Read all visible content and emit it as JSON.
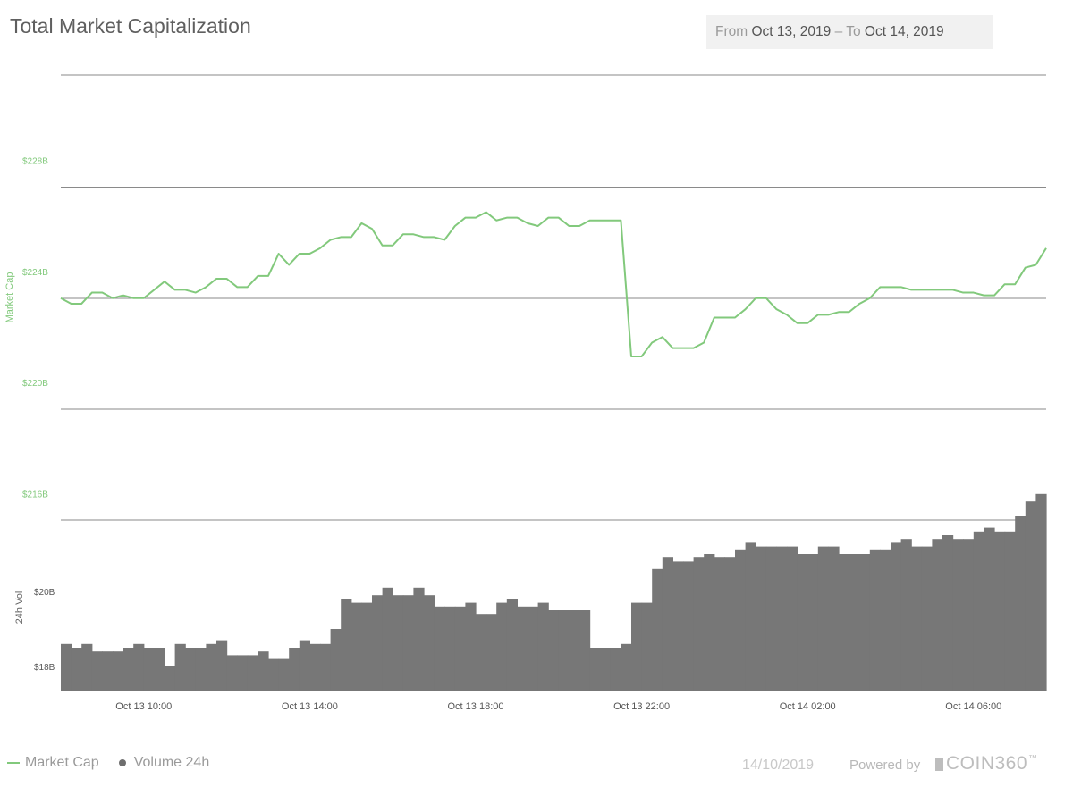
{
  "header": {
    "title": "Total Market Capitalization",
    "from_label": "From",
    "from_date": "Oct 13, 2019",
    "separator": "–",
    "to_label": "To",
    "to_date": "Oct 14, 2019"
  },
  "legend": {
    "market_cap": "Market Cap",
    "volume": "Volume 24h"
  },
  "footer": {
    "date": "14/10/2019",
    "powered_by": "Powered by",
    "brand": "COIN360",
    "trademark": "™"
  },
  "colors": {
    "market_cap_line": "#82c97c",
    "volume_bars": "#777777",
    "axis_label_green": "#82c97c",
    "gridline": "#8a8a8a"
  },
  "chart_data": [
    {
      "type": "line",
      "name": "Market Cap",
      "ylabel": "Market Cap",
      "yticks": [
        "$228B",
        "$224B",
        "$220B",
        "$216B"
      ],
      "ytick_values": [
        228,
        224,
        220,
        216
      ],
      "ylim": [
        212,
        232
      ],
      "unit": "$B",
      "x_start": "Oct 13 08:00",
      "x_end": "Oct 14 08:00",
      "x_step_minutes": 15,
      "values": [
        224.0,
        223.8,
        223.8,
        224.2,
        224.2,
        224.0,
        224.1,
        224.0,
        224.0,
        224.3,
        224.6,
        224.3,
        224.3,
        224.2,
        224.4,
        224.7,
        224.7,
        224.4,
        224.4,
        224.8,
        224.8,
        225.6,
        225.2,
        225.6,
        225.6,
        225.8,
        226.1,
        226.2,
        226.2,
        226.7,
        226.5,
        225.9,
        225.9,
        226.3,
        226.3,
        226.2,
        226.2,
        226.1,
        226.6,
        226.9,
        226.9,
        227.1,
        226.8,
        226.9,
        226.9,
        226.7,
        226.6,
        226.9,
        226.9,
        226.6,
        226.6,
        226.8,
        226.8,
        226.8,
        226.8,
        221.9,
        221.9,
        222.4,
        222.6,
        222.2,
        222.2,
        222.2,
        222.4,
        223.3,
        223.3,
        223.3,
        223.6,
        224.0,
        224.0,
        223.6,
        223.4,
        223.1,
        223.1,
        223.4,
        223.4,
        223.5,
        223.5,
        223.8,
        224.0,
        224.4,
        224.4,
        224.4,
        224.3,
        224.3,
        224.3,
        224.3,
        224.3,
        224.2,
        224.2,
        224.1,
        224.1,
        224.5,
        224.5,
        225.1,
        225.2,
        225.8
      ]
    },
    {
      "type": "bar",
      "name": "Volume 24h",
      "ylabel": "24h Vol",
      "yticks": [
        "$20B",
        "$18B"
      ],
      "ytick_values": [
        20,
        18
      ],
      "unit": "$B",
      "values": [
        18.6,
        18.5,
        18.6,
        18.4,
        18.4,
        18.4,
        18.5,
        18.6,
        18.5,
        18.5,
        18.0,
        18.6,
        18.5,
        18.5,
        18.6,
        18.7,
        18.3,
        18.3,
        18.3,
        18.4,
        18.2,
        18.2,
        18.5,
        18.7,
        18.6,
        18.6,
        19.0,
        19.8,
        19.7,
        19.7,
        19.9,
        20.1,
        19.9,
        19.9,
        20.1,
        19.9,
        19.6,
        19.6,
        19.6,
        19.7,
        19.4,
        19.4,
        19.7,
        19.8,
        19.6,
        19.6,
        19.7,
        19.5,
        19.5,
        19.5,
        19.5,
        18.5,
        18.5,
        18.5,
        18.6,
        19.7,
        19.7,
        20.6,
        20.9,
        20.8,
        20.8,
        20.9,
        21.0,
        20.9,
        20.9,
        21.1,
        21.3,
        21.2,
        21.2,
        21.2,
        21.2,
        21.0,
        21.0,
        21.2,
        21.2,
        21.0,
        21.0,
        21.0,
        21.1,
        21.1,
        21.3,
        21.4,
        21.2,
        21.2,
        21.4,
        21.5,
        21.4,
        21.4,
        21.6,
        21.7,
        21.6,
        21.6,
        22.0,
        22.4,
        22.6
      ]
    }
  ],
  "x_axis": {
    "tick_labels": [
      "Oct 13 10:00",
      "Oct 13 14:00",
      "Oct 13 18:00",
      "Oct 13 22:00",
      "Oct 14 02:00",
      "Oct 14 06:00"
    ],
    "tick_times": [
      "Oct 13 10:00",
      "Oct 13 14:00",
      "Oct 13 18:00",
      "Oct 13 22:00",
      "Oct 14 02:00",
      "Oct 14 06:00"
    ]
  }
}
